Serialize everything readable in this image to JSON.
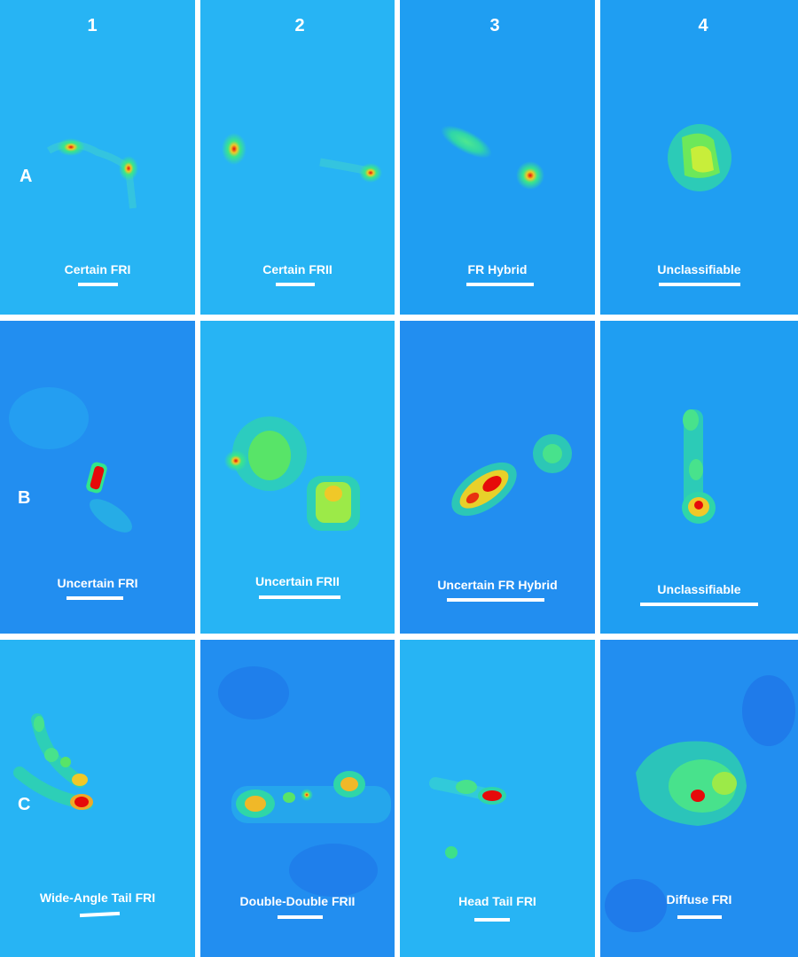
{
  "columns": [
    "1",
    "2",
    "3",
    "4"
  ],
  "rows": [
    "A",
    "B",
    "C"
  ],
  "panels": [
    {
      "id": "a1",
      "caption": "Certain FRI",
      "bg": "light"
    },
    {
      "id": "a2",
      "caption": "Certain FRII",
      "bg": "light"
    },
    {
      "id": "a3",
      "caption": "FR Hybrid",
      "bg": "medium"
    },
    {
      "id": "a4",
      "caption": "Unclassifiable",
      "bg": "medium"
    },
    {
      "id": "b1",
      "caption": "Uncertain FRI",
      "bg": "noisy"
    },
    {
      "id": "b2",
      "caption": "Uncertain FRII",
      "bg": "light"
    },
    {
      "id": "b3",
      "caption": "Uncertain FR Hybrid",
      "bg": "noisy"
    },
    {
      "id": "b4",
      "caption": "Unclassifiable",
      "bg": "medium"
    },
    {
      "id": "c1",
      "caption": "Wide-Angle Tail FRI",
      "bg": "light"
    },
    {
      "id": "c2",
      "caption": "Double-Double FRII",
      "bg": "noisy"
    },
    {
      "id": "c3",
      "caption": "Head Tail FRI",
      "bg": "light"
    },
    {
      "id": "c4",
      "caption": "Diffuse FRI",
      "bg": "noisy"
    }
  ],
  "colors": {
    "background_light": "#27b4f4",
    "background_medium": "#1f9ef2",
    "background_noisy": "#228ef0",
    "emission_green": "#32e68c",
    "emission_yellow": "#f0f028",
    "emission_red": "#e60a0a",
    "caption": "#ffffff"
  }
}
